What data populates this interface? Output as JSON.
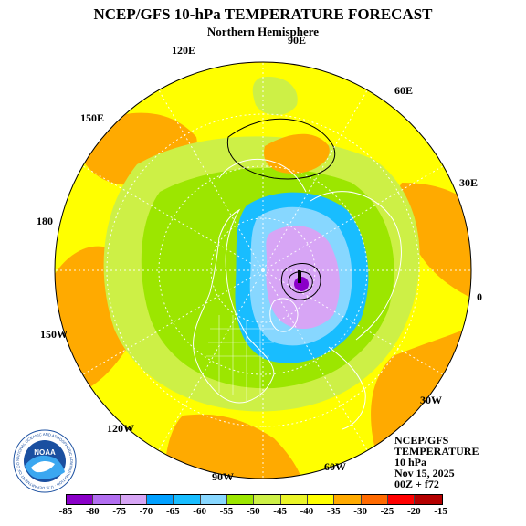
{
  "header": {
    "title": "NCEP/GFS 10-hPa TEMPERATURE FORECAST",
    "subtitle": "Northern Hemisphere"
  },
  "longitude_labels": {
    "lon_90e": "90E",
    "lon_120e": "120E",
    "lon_60e": "60E",
    "lon_150e": "150E",
    "lon_30e": "30E",
    "lon_180": "180",
    "lon_0": "0",
    "lon_150w": "150W",
    "lon_30w": "30W",
    "lon_120w": "120W",
    "lon_60w": "60W",
    "lon_90w": "90W"
  },
  "info": {
    "line1": "NCEP/GFS",
    "line2": "TEMPERATURE",
    "line3": "10 hPa",
    "line4": "Nov 15, 2025",
    "line5": "00Z + f72"
  },
  "logo": {
    "name": "NOAA",
    "ring_text": "NATIONAL OCEANIC AND ATMOSPHERIC ADMINISTRATION · U.S. DEPARTMENT OF COMMERCE"
  },
  "legend": {
    "ticks": [
      "-85",
      "-80",
      "-75",
      "-70",
      "-65",
      "-60",
      "-55",
      "-50",
      "-45",
      "-40",
      "-35",
      "-30",
      "-25",
      "-20",
      "-15"
    ],
    "colors": [
      "#8a00c8",
      "#b26ef0",
      "#d7a5f5",
      "#00a0ff",
      "#18bdff",
      "#87d7ff",
      "#9ce600",
      "#cdf046",
      "#ebf528",
      "#ffff00",
      "#ffaa00",
      "#ff6a00",
      "#ff0000",
      "#b40000"
    ]
  },
  "map": {
    "field_colors": {
      "cold_core": "#8a00c8",
      "vortex_inner": "#d7a5f5",
      "vortex_mid": "#87d7ff",
      "vortex_outer": "#18bdff",
      "green": "#9ce600",
      "light_green": "#cdf046",
      "yellow": "#ffff00",
      "orange": "#ffaa00",
      "coastline": "#ffffff"
    }
  }
}
